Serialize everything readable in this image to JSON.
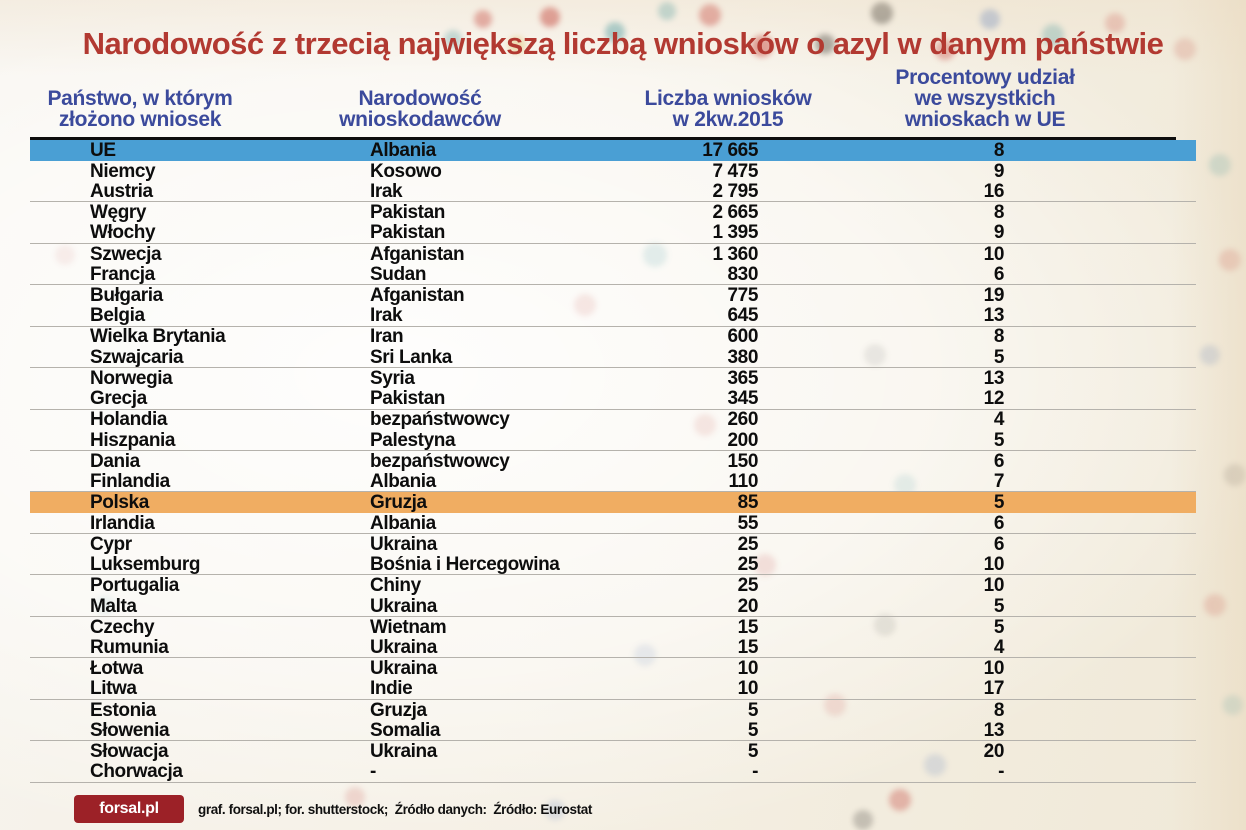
{
  "title": "Narodowość z trzecią największą liczbą wniosków o azyl w danym państwie",
  "colors": {
    "title_red": "#b23931",
    "header_blue": "#3b4a9c",
    "highlight_blue": "#4a9fd4",
    "highlight_orange": "#f0ad62",
    "logo_red": "#9c2127"
  },
  "table": {
    "headers": [
      "Państwo, w którym\nzłożono wniosek",
      "Narodowość\nwnioskodawców",
      "Liczba wniosków\nw 2kw.2015",
      "Procentowy udział\nwe wszystkich\nwnioskach w UE"
    ],
    "rows": [
      {
        "country": "UE",
        "nationality": "Albania",
        "count": "17 665",
        "share": "8",
        "highlight": "blue"
      },
      {
        "country": "Niemcy",
        "nationality": "Kosowo",
        "count": "7 475",
        "share": "9",
        "highlight": null
      },
      {
        "country": "Austria",
        "nationality": "Irak",
        "count": "2 795",
        "share": "16",
        "highlight": null
      },
      {
        "country": "Węgry",
        "nationality": "Pakistan",
        "count": "2 665",
        "share": "8",
        "highlight": null
      },
      {
        "country": "Włochy",
        "nationality": "Pakistan",
        "count": "1 395",
        "share": "9",
        "highlight": null
      },
      {
        "country": "Szwecja",
        "nationality": "Afganistan",
        "count": "1 360",
        "share": "10",
        "highlight": null
      },
      {
        "country": "Francja",
        "nationality": "Sudan",
        "count": "830",
        "share": "6",
        "highlight": null
      },
      {
        "country": "Bułgaria",
        "nationality": "Afganistan",
        "count": "775",
        "share": "19",
        "highlight": null
      },
      {
        "country": "Belgia",
        "nationality": "Irak",
        "count": "645",
        "share": "13",
        "highlight": null
      },
      {
        "country": "Wielka Brytania",
        "nationality": "Iran",
        "count": "600",
        "share": "8",
        "highlight": null
      },
      {
        "country": "Szwajcaria",
        "nationality": "Sri Lanka",
        "count": "380",
        "share": "5",
        "highlight": null
      },
      {
        "country": "Norwegia",
        "nationality": "Syria",
        "count": "365",
        "share": "13",
        "highlight": null
      },
      {
        "country": "Grecja",
        "nationality": "Pakistan",
        "count": "345",
        "share": "12",
        "highlight": null
      },
      {
        "country": "Holandia",
        "nationality": "bezpaństwowcy",
        "count": "260",
        "share": "4",
        "highlight": null
      },
      {
        "country": "Hiszpania",
        "nationality": "Palestyna",
        "count": "200",
        "share": "5",
        "highlight": null
      },
      {
        "country": "Dania",
        "nationality": "bezpaństwowcy",
        "count": "150",
        "share": "6",
        "highlight": null
      },
      {
        "country": "Finlandia",
        "nationality": "Albania",
        "count": "110",
        "share": "7",
        "highlight": null
      },
      {
        "country": "Polska",
        "nationality": "Gruzja",
        "count": "85",
        "share": "5",
        "highlight": "orange"
      },
      {
        "country": "Irlandia",
        "nationality": "Albania",
        "count": "55",
        "share": "6",
        "highlight": null
      },
      {
        "country": "Cypr",
        "nationality": "Ukraina",
        "count": "25",
        "share": "6",
        "highlight": null
      },
      {
        "country": "Luksemburg",
        "nationality": "Bośnia i Hercegowina",
        "count": "25",
        "share": "10",
        "highlight": null
      },
      {
        "country": "Portugalia",
        "nationality": "Chiny",
        "count": "25",
        "share": "10",
        "highlight": null
      },
      {
        "country": "Malta",
        "nationality": "Ukraina",
        "count": "20",
        "share": "5",
        "highlight": null
      },
      {
        "country": "Czechy",
        "nationality": "Wietnam",
        "count": "15",
        "share": "5",
        "highlight": null
      },
      {
        "country": "Rumunia",
        "nationality": "Ukraina",
        "count": "15",
        "share": "4",
        "highlight": null
      },
      {
        "country": "Łotwa",
        "nationality": "Ukraina",
        "count": "10",
        "share": "10",
        "highlight": null
      },
      {
        "country": "Litwa",
        "nationality": "Indie",
        "count": "10",
        "share": "17",
        "highlight": null
      },
      {
        "country": "Estonia",
        "nationality": "Gruzja",
        "count": "5",
        "share": "8",
        "highlight": null
      },
      {
        "country": "Słowenia",
        "nationality": "Somalia",
        "count": "5",
        "share": "13",
        "highlight": null
      },
      {
        "country": "Słowacja",
        "nationality": "Ukraina",
        "count": "5",
        "share": "20",
        "highlight": null
      },
      {
        "country": "Chorwacja",
        "nationality": "-",
        "count": "-",
        "share": "-",
        "highlight": null
      }
    ]
  },
  "footer": {
    "logo_text": "forsal.pl",
    "credits": "graf. forsal.pl; for. shutterstock;  Źródło danych:  Źródło: Eurostat"
  },
  "chart_data": {
    "type": "table",
    "title": "Narodowość z trzecią największą liczbą wniosków o azyl w danym państwie",
    "columns": [
      "Państwo, w którym złożono wniosek",
      "Narodowość wnioskodawców",
      "Liczba wniosków w 2kw.2015",
      "Procentowy udział we wszystkich wnioskach w UE"
    ],
    "rows": [
      [
        "UE",
        "Albania",
        17665,
        8
      ],
      [
        "Niemcy",
        "Kosowo",
        7475,
        9
      ],
      [
        "Austria",
        "Irak",
        2795,
        16
      ],
      [
        "Węgry",
        "Pakistan",
        2665,
        8
      ],
      [
        "Włochy",
        "Pakistan",
        1395,
        9
      ],
      [
        "Szwecja",
        "Afganistan",
        1360,
        10
      ],
      [
        "Francja",
        "Sudan",
        830,
        6
      ],
      [
        "Bułgaria",
        "Afganistan",
        775,
        19
      ],
      [
        "Belgia",
        "Irak",
        645,
        13
      ],
      [
        "Wielka Brytania",
        "Iran",
        600,
        8
      ],
      [
        "Szwajcaria",
        "Sri Lanka",
        380,
        5
      ],
      [
        "Norwegia",
        "Syria",
        365,
        13
      ],
      [
        "Grecja",
        "Pakistan",
        345,
        12
      ],
      [
        "Holandia",
        "bezpaństwowcy",
        260,
        4
      ],
      [
        "Hiszpania",
        "Palestyna",
        200,
        5
      ],
      [
        "Dania",
        "bezpaństwowcy",
        150,
        6
      ],
      [
        "Finlandia",
        "Albania",
        110,
        7
      ],
      [
        "Polska",
        "Gruzja",
        85,
        5
      ],
      [
        "Irlandia",
        "Albania",
        55,
        6
      ],
      [
        "Cypr",
        "Ukraina",
        25,
        6
      ],
      [
        "Luksemburg",
        "Bośnia i Hercegowina",
        25,
        10
      ],
      [
        "Portugalia",
        "Chiny",
        25,
        10
      ],
      [
        "Malta",
        "Ukraina",
        20,
        5
      ],
      [
        "Czechy",
        "Wietnam",
        15,
        5
      ],
      [
        "Rumunia",
        "Ukraina",
        15,
        4
      ],
      [
        "Łotwa",
        "Ukraina",
        10,
        10
      ],
      [
        "Litwa",
        "Indie",
        10,
        17
      ],
      [
        "Estonia",
        "Gruzja",
        5,
        8
      ],
      [
        "Słowenia",
        "Somalia",
        5,
        13
      ],
      [
        "Słowacja",
        "Ukraina",
        5,
        20
      ],
      [
        "Chorwacja",
        "-",
        null,
        null
      ]
    ],
    "highlighted_rows": {
      "UE": "blue",
      "Polska": "orange"
    }
  }
}
